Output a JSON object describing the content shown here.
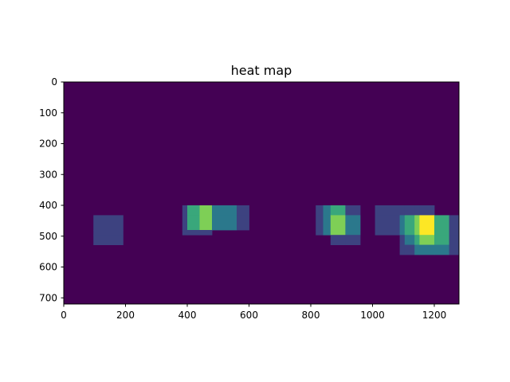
{
  "chart_data": {
    "type": "heatmap",
    "title": "heat map",
    "xlabel": "",
    "ylabel": "",
    "xlim": [
      0,
      1280
    ],
    "ylim": [
      720,
      0
    ],
    "x_ticks": [
      0,
      200,
      400,
      600,
      800,
      1000,
      1200
    ],
    "y_ticks": [
      0,
      100,
      200,
      300,
      400,
      500,
      600,
      700
    ],
    "colormap": [
      "#440154",
      "#3b528b",
      "#21918c",
      "#5ec962",
      "#fde725"
    ],
    "background_value": 0,
    "max_value": 5,
    "cells": [
      {
        "x0": 96,
        "x1": 192,
        "y0": 432,
        "y1": 528,
        "value": 1
      },
      {
        "x0": 384,
        "x1": 480,
        "y0": 400,
        "y1": 496,
        "value": 1
      },
      {
        "x0": 400,
        "x1": 600,
        "y0": 400,
        "y1": 480,
        "value": 1
      },
      {
        "x0": 400,
        "x1": 560,
        "y0": 400,
        "y1": 480,
        "value": 1
      },
      {
        "x0": 440,
        "x1": 480,
        "y0": 400,
        "y1": 480,
        "value": 1
      },
      {
        "x0": 816,
        "x1": 912,
        "y0": 400,
        "y1": 496,
        "value": 1
      },
      {
        "x0": 840,
        "x1": 960,
        "y0": 400,
        "y1": 496,
        "value": 1
      },
      {
        "x0": 864,
        "x1": 960,
        "y0": 432,
        "y1": 528,
        "value": 1
      },
      {
        "x0": 864,
        "x1": 912,
        "y0": 400,
        "y1": 496,
        "value": 1
      },
      {
        "x0": 1008,
        "x1": 1200,
        "y0": 400,
        "y1": 496,
        "value": 1
      },
      {
        "x0": 1088,
        "x1": 1280,
        "y0": 432,
        "y1": 560,
        "value": 1
      },
      {
        "x0": 1104,
        "x1": 1248,
        "y0": 432,
        "y1": 528,
        "value": 1
      },
      {
        "x0": 1136,
        "x1": 1248,
        "y0": 432,
        "y1": 560,
        "value": 1
      },
      {
        "x0": 1152,
        "x1": 1200,
        "y0": 432,
        "y1": 528,
        "value": 1
      }
    ]
  }
}
